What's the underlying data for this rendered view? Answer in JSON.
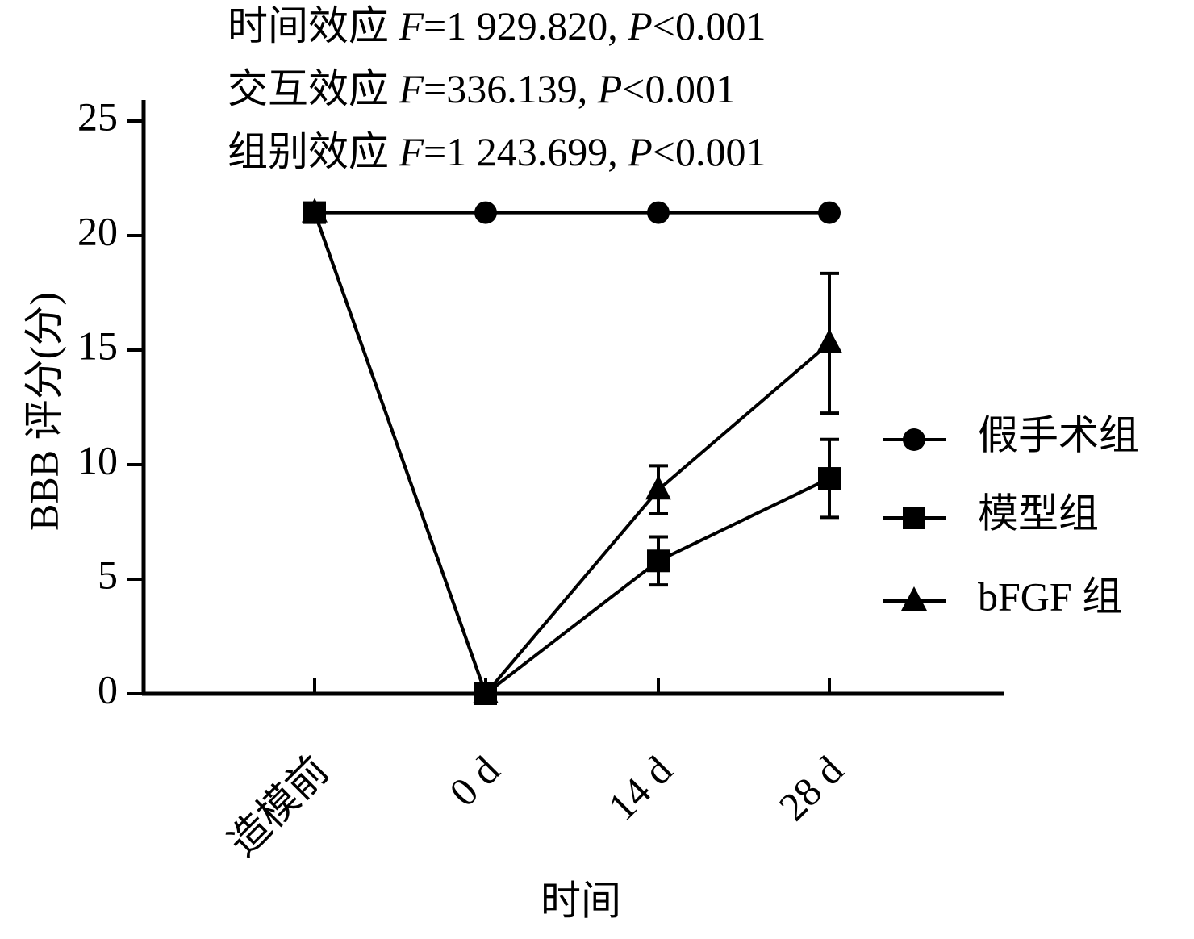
{
  "chart_data": {
    "type": "line",
    "annotations": [
      "时间效应 F=1 929.820, P<0.001",
      "交互效应 F=336.139, P<0.001",
      "组别效应 F=1 243.699, P<0.001"
    ],
    "x_label": "时间",
    "y_label": "BBB 评分(分)",
    "categories": [
      "造模前",
      "0 d",
      "14 d",
      "28 d"
    ],
    "ylim": [
      0,
      25
    ],
    "yticks": [
      0,
      5,
      10,
      15,
      20,
      25
    ],
    "series": [
      {
        "name": "假手术组",
        "marker": "circle",
        "color": "#000000",
        "values": [
          21,
          21,
          21,
          21
        ],
        "errors": [
          null,
          null,
          null,
          null
        ]
      },
      {
        "name": "模型组",
        "marker": "square",
        "color": "#000000",
        "values": [
          21,
          0,
          5.8,
          9.4
        ],
        "errors": [
          null,
          null,
          1.05,
          1.7
        ]
      },
      {
        "name": "bFGF 组",
        "marker": "triangle",
        "color": "#000000",
        "values": [
          21,
          0,
          8.9,
          15.3
        ],
        "errors": [
          null,
          null,
          1.05,
          3.05
        ]
      }
    ]
  }
}
